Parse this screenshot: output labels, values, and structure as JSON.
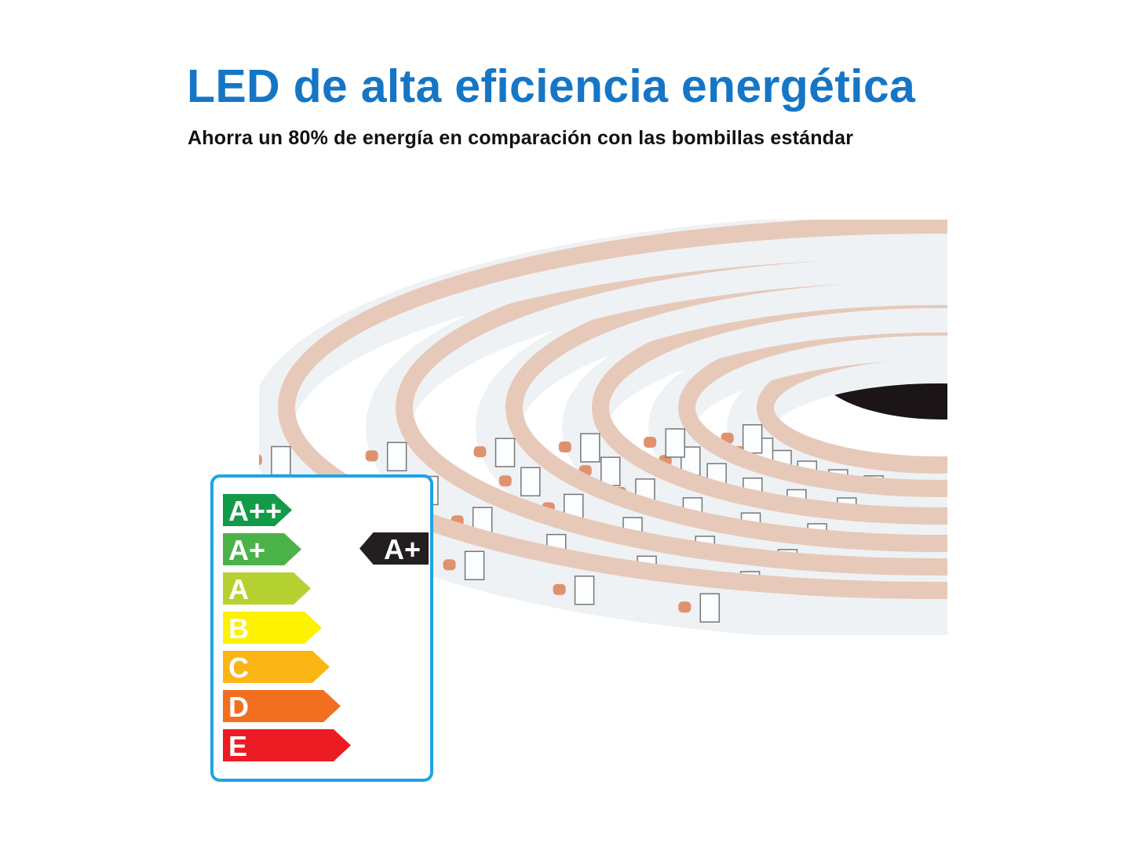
{
  "header": {
    "title": "LED de alta eficiencia energética",
    "subtitle": "Ahorra un 80% de energía en comparación con las bombillas estándar"
  },
  "energy_label": {
    "classes": [
      {
        "label": "A++",
        "color": "#139a48"
      },
      {
        "label": "A+",
        "color": "#4bb24a"
      },
      {
        "label": "A",
        "color": "#b6d232"
      },
      {
        "label": "B",
        "color": "#fef200"
      },
      {
        "label": "C",
        "color": "#fbb515"
      },
      {
        "label": "D",
        "color": "#f26f21"
      },
      {
        "label": "E",
        "color": "#ec1c24"
      }
    ],
    "rating": "A+",
    "border_color": "#1ea4e2"
  },
  "colors": {
    "title": "#1576c6"
  }
}
